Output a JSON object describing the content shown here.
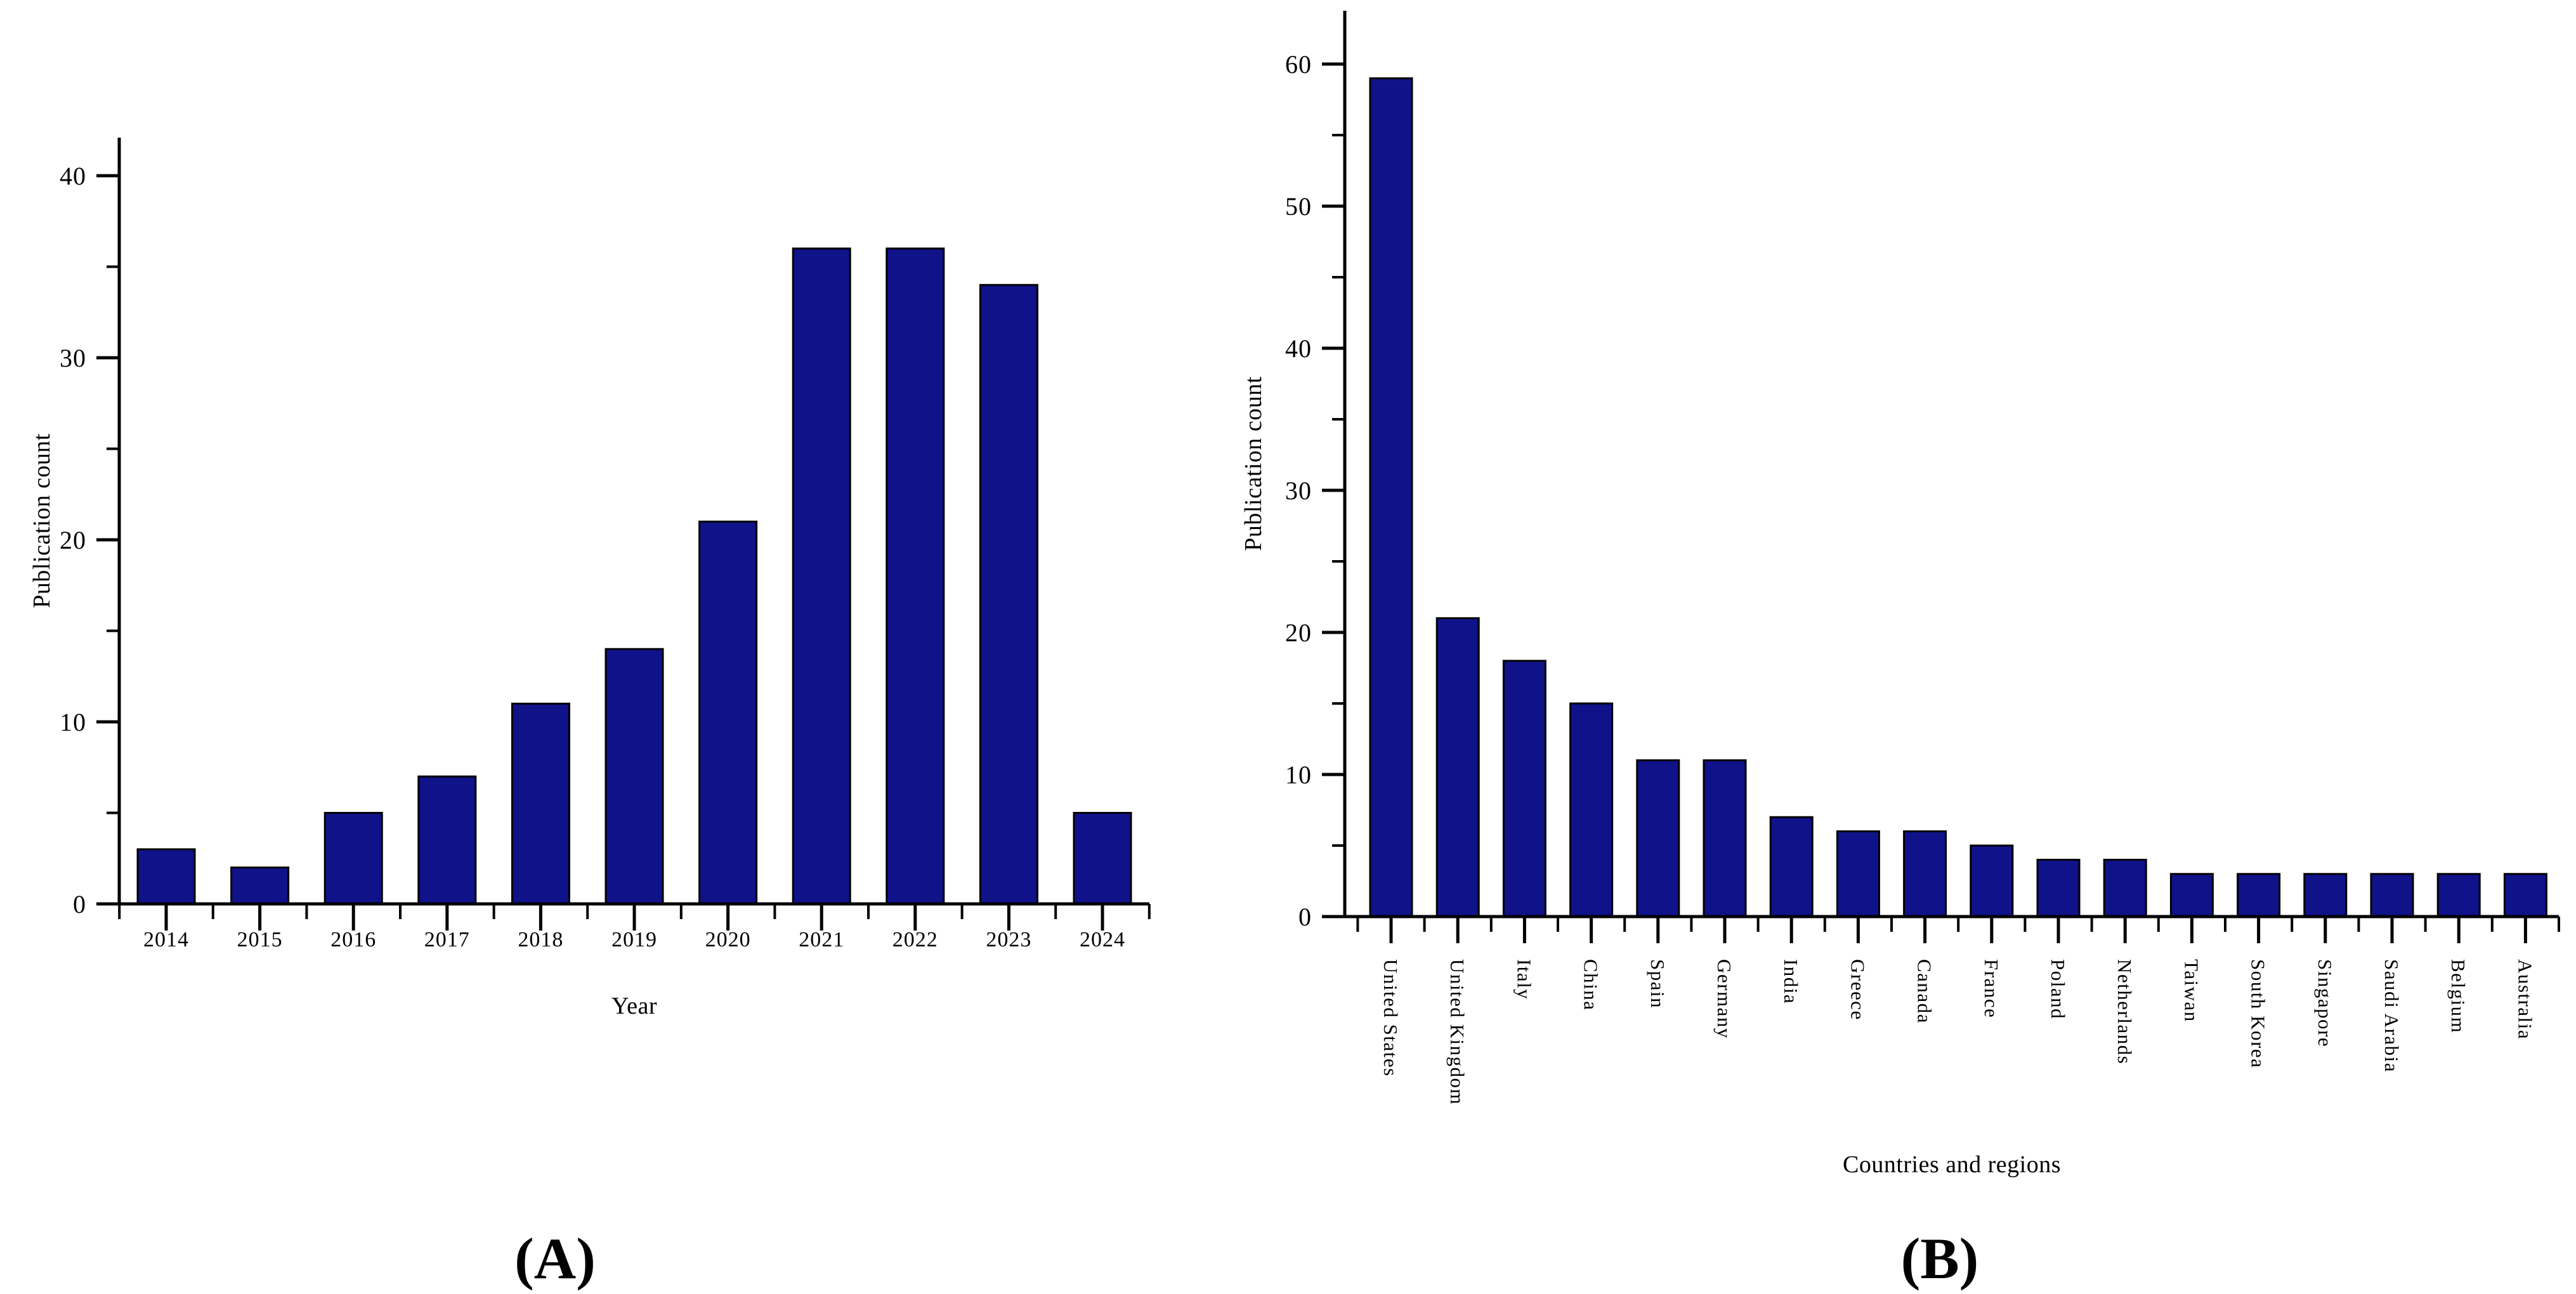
{
  "colors": {
    "background": "#ffffff",
    "bar_fill": "#10128a",
    "bar_stroke": "#000000",
    "axis": "#000000",
    "text": "#000000"
  },
  "chart_data": [
    {
      "panel": "A",
      "type": "bar",
      "title": "",
      "caption": "(A)",
      "xlabel": "Year",
      "ylabel": "Publication count",
      "categories": [
        "2014",
        "2015",
        "2016",
        "2017",
        "2018",
        "2019",
        "2020",
        "2021",
        "2022",
        "2023",
        "2024"
      ],
      "values": [
        3,
        2,
        5,
        7,
        11,
        14,
        21,
        36,
        36,
        34,
        5
      ],
      "ylim": [
        0,
        42
      ],
      "y_major_ticks": [
        0,
        10,
        20,
        30,
        40
      ],
      "y_minor_ticks": [
        5,
        15,
        25,
        35
      ],
      "grid": false,
      "legend_position": "none"
    },
    {
      "panel": "B",
      "type": "bar",
      "title": "",
      "caption": "(B)",
      "xlabel": "Countries and regions",
      "ylabel": "Publication count",
      "categories": [
        "United States",
        "United Kingdom",
        "Italy",
        "China",
        "Spain",
        "Germany",
        "India",
        "Greece",
        "Canada",
        "France",
        "Poland",
        "Netherlands",
        "Taiwan",
        "South Korea",
        "Singapore",
        "Saudi Arabia",
        "Belgium",
        "Australia"
      ],
      "values": [
        59,
        21,
        18,
        15,
        11,
        11,
        7,
        6,
        6,
        5,
        4,
        4,
        3,
        3,
        3,
        3,
        3,
        3
      ],
      "ylim": [
        0,
        64
      ],
      "y_major_ticks": [
        0,
        10,
        20,
        30,
        40,
        50,
        60
      ],
      "y_minor_ticks": [
        5,
        15,
        25,
        35,
        45,
        55
      ],
      "grid": false,
      "legend_position": "none"
    }
  ]
}
